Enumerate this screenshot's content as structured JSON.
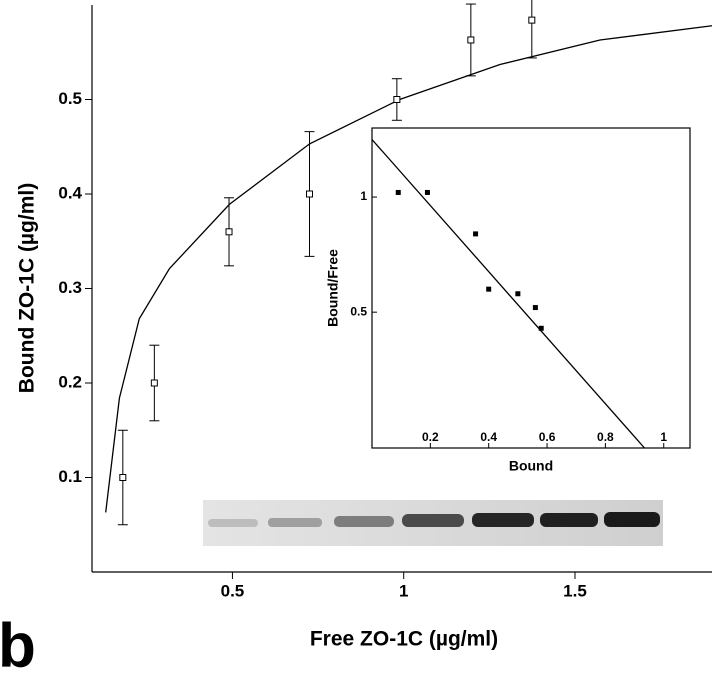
{
  "panel_label": "b",
  "chart_data": [
    {
      "type": "scatter",
      "xlabel": "Free ZO-1C (µg/ml)",
      "ylabel": "Bound ZO-1C (µg/ml)",
      "x": [
        0.18,
        0.272,
        0.49,
        0.725,
        0.98,
        1.196,
        1.374
      ],
      "values": [
        0.1,
        0.2,
        0.36,
        0.4,
        0.5,
        0.563,
        0.584
      ],
      "errors": [
        0.05,
        0.04,
        0.036,
        0.066,
        0.022,
        0.038,
        0.04
      ],
      "fit": {
        "x": [
          0.13,
          0.17,
          0.228,
          0.316,
          0.491,
          0.725,
          0.988,
          1.281,
          1.573,
          1.9
        ],
        "y": [
          0.063,
          0.184,
          0.268,
          0.321,
          0.389,
          0.453,
          0.5,
          0.537,
          0.563,
          0.578
        ]
      },
      "xlim": [
        0.09,
        1.9
      ],
      "ylim": [
        0,
        0.6
      ],
      "xticks": [
        0.5,
        1,
        1.5
      ],
      "yticks": [
        0.1,
        0.2,
        0.3,
        0.4,
        0.5
      ]
    },
    {
      "type": "scatter",
      "xlabel": "Bound",
      "ylabel": "Bound/Free",
      "x": [
        0.09,
        0.19,
        0.355,
        0.4,
        0.5,
        0.56,
        0.58
      ],
      "values": [
        1.02,
        1.02,
        0.84,
        0.6,
        0.58,
        0.52,
        0.43
      ],
      "fit": {
        "x": [
          0,
          0.934
        ],
        "y": [
          1.25,
          -0.09
        ]
      },
      "xlim": [
        0,
        1.09
      ],
      "ylim": [
        -0.09,
        1.3
      ],
      "xticks": [
        0.2,
        0.4,
        0.6,
        0.8,
        1
      ],
      "yticks": [
        0.5,
        1
      ]
    }
  ]
}
